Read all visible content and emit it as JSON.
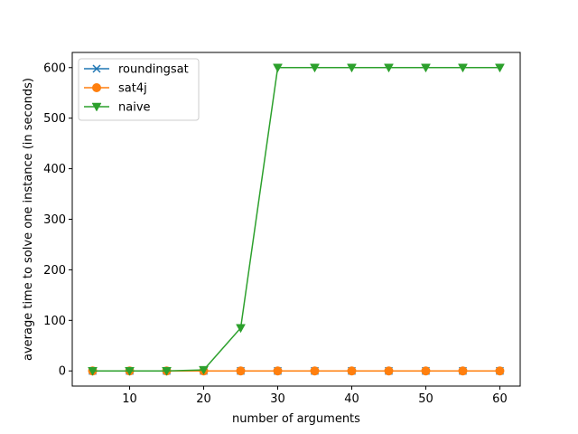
{
  "chart_data": {
    "type": "line",
    "title": "",
    "xlabel": "number of arguments",
    "ylabel": "average time to solve one instance (in seconds)",
    "xlim": [
      2.25,
      62.75
    ],
    "ylim": [
      -30,
      630
    ],
    "xticks": [
      10,
      20,
      30,
      40,
      50,
      60
    ],
    "yticks": [
      0,
      100,
      200,
      300,
      400,
      500,
      600
    ],
    "grid": false,
    "legend_position": "top-left",
    "x": [
      5,
      10,
      15,
      20,
      25,
      30,
      35,
      40,
      45,
      50,
      55,
      60
    ],
    "series": [
      {
        "name": "roundingsat",
        "color": "#1f77b4",
        "marker": "x",
        "values": [
          0,
          0,
          0,
          0,
          0,
          0,
          0,
          0,
          0,
          0,
          0,
          0
        ]
      },
      {
        "name": "sat4j",
        "color": "#ff7f0e",
        "marker": "o",
        "values": [
          0,
          0,
          0,
          0,
          0,
          0,
          0,
          0,
          0,
          0,
          0,
          0
        ]
      },
      {
        "name": "naive",
        "color": "#2ca02c",
        "marker": "v",
        "values": [
          0,
          0,
          0,
          2,
          85,
          600,
          600,
          600,
          600,
          600,
          600,
          600
        ]
      }
    ]
  }
}
